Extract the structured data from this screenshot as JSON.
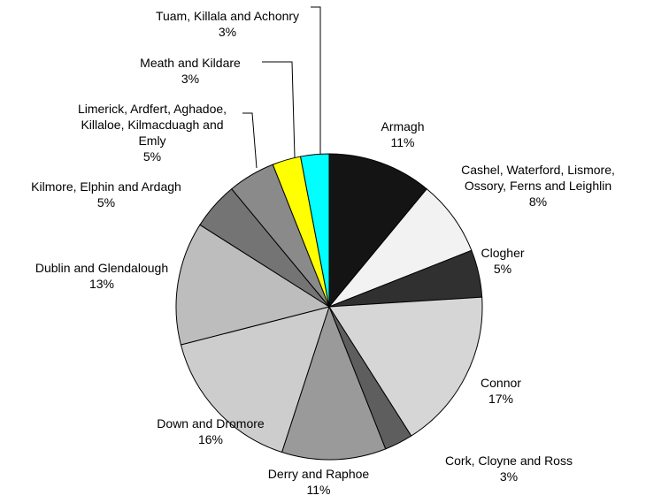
{
  "chart_data": {
    "type": "pie",
    "categories": [
      "Armagh",
      "Cashel, Waterford, Lismore, Ossory, Ferns and Leighlin",
      "Clogher",
      "Connor",
      "Cork, Cloyne and Ross",
      "Derry and Raphoe",
      "Down and Dromore",
      "Dublin and Glendalough",
      "Kilmore, Elphin and Ardagh",
      "Limerick, Ardfert, Aghadoe, Killaloe, Kilmacduagh and Emly",
      "Meath and Kildare",
      "Tuam, Killala and Achonry"
    ],
    "values": [
      11,
      8,
      5,
      17,
      3,
      11,
      16,
      13,
      5,
      5,
      3,
      3
    ],
    "value_labels": [
      "11%",
      "8%",
      "5%",
      "17%",
      "3%",
      "11%",
      "16%",
      "13%",
      "5%",
      "5%",
      "3%",
      "3%"
    ],
    "colors": [
      "#141414",
      "#f2f2f2",
      "#303030",
      "#d6d6d6",
      "#5e5e5e",
      "#9a9a9a",
      "#cdcdcd",
      "#bdbdbd",
      "#747474",
      "#8a8a8a",
      "#ffff00",
      "#00ffff"
    ]
  }
}
